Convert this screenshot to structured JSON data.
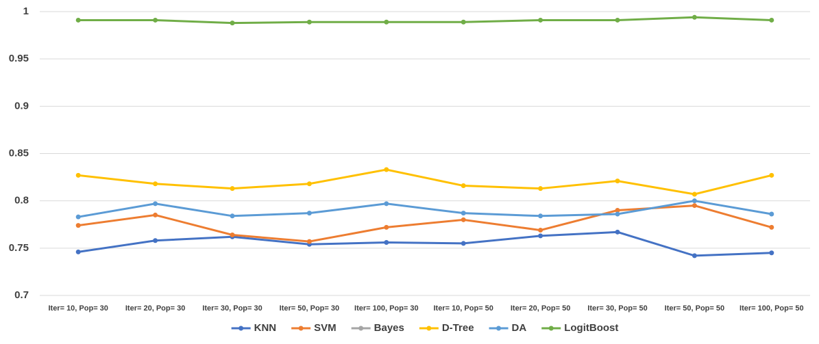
{
  "chart_data": {
    "type": "line",
    "categories": [
      "Iter= 10, Pop= 30",
      "Iter= 20, Pop= 30",
      "Iter= 30, Pop= 30",
      "Iter= 50, Pop= 30",
      "Iter= 100, Pop= 30",
      "Iter= 10, Pop= 50",
      "Iter= 20, Pop= 50",
      "Iter= 30, Pop= 50",
      "Iter= 50, Pop= 50",
      "Iter= 100, Pop= 50"
    ],
    "series": [
      {
        "name": "KNN",
        "color": "#4472c4",
        "values": [
          0.746,
          0.758,
          0.762,
          0.754,
          0.756,
          0.755,
          0.763,
          0.767,
          0.742,
          0.745
        ]
      },
      {
        "name": "SVM",
        "color": "#ed7d31",
        "values": [
          0.774,
          0.785,
          0.764,
          0.757,
          0.772,
          0.78,
          0.769,
          0.79,
          0.795,
          0.772
        ]
      },
      {
        "name": "Bayes",
        "color": "#a5a5a5",
        "values": [
          null,
          null,
          null,
          null,
          null,
          null,
          null,
          null,
          null,
          null
        ]
      },
      {
        "name": "D-Tree",
        "color": "#ffc000",
        "values": [
          0.827,
          0.818,
          0.813,
          0.818,
          0.833,
          0.816,
          0.813,
          0.821,
          0.807,
          0.827
        ]
      },
      {
        "name": "DA",
        "color": "#5b9bd5",
        "values": [
          0.783,
          0.797,
          0.784,
          0.787,
          0.797,
          0.787,
          0.784,
          0.786,
          0.8,
          0.786
        ]
      },
      {
        "name": "LogitBoost",
        "color": "#70ad47",
        "values": [
          0.991,
          0.991,
          0.988,
          0.989,
          0.989,
          0.989,
          0.991,
          0.991,
          0.994,
          0.991
        ]
      }
    ],
    "ylim": [
      0.7,
      1
    ],
    "yticks": [
      0.7,
      0.75,
      0.8,
      0.85,
      0.9,
      0.95,
      1
    ],
    "grid": true,
    "legend": "bottom"
  }
}
